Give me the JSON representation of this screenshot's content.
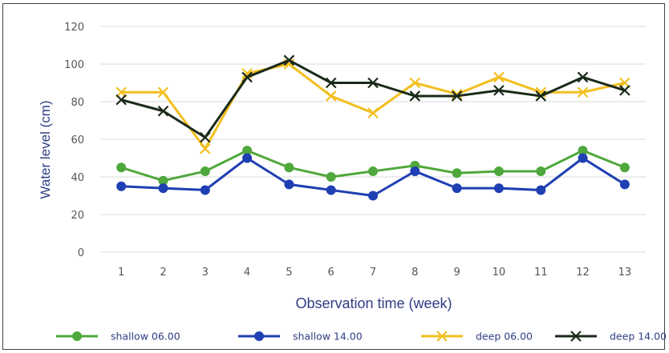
{
  "chart_data": {
    "type": "line",
    "title": "",
    "xlabel": "Observation time (week)",
    "ylabel": "Water level (cm)",
    "x": [
      1,
      2,
      3,
      4,
      5,
      6,
      7,
      8,
      9,
      10,
      11,
      12,
      13
    ],
    "ylim": [
      0,
      120
    ],
    "yticks": [
      0,
      20,
      40,
      60,
      80,
      100,
      120
    ],
    "grid": "horizontal",
    "legend_position": "bottom",
    "series": [
      {
        "name": "shallow 06.00",
        "color": "#4fa83c",
        "marker": "circle",
        "values": [
          45,
          38,
          43,
          54,
          45,
          40,
          43,
          46,
          42,
          43,
          43,
          54,
          45
        ]
      },
      {
        "name": "shallow 14.00",
        "color": "#1f3fb3",
        "marker": "circle",
        "values": [
          35,
          34,
          33,
          50,
          36,
          33,
          30,
          43,
          34,
          34,
          33,
          50,
          36
        ]
      },
      {
        "name": "deep 06.00",
        "color": "#f2bf1f",
        "marker": "x",
        "values": [
          85,
          85,
          55,
          95,
          100,
          83,
          74,
          90,
          84,
          93,
          85,
          85,
          90
        ]
      },
      {
        "name": "deep 14.00",
        "color": "#1a2a1a",
        "marker": "x",
        "values": [
          81,
          75,
          61,
          93,
          102,
          90,
          90,
          83,
          83,
          86,
          83,
          93,
          86
        ]
      }
    ]
  }
}
